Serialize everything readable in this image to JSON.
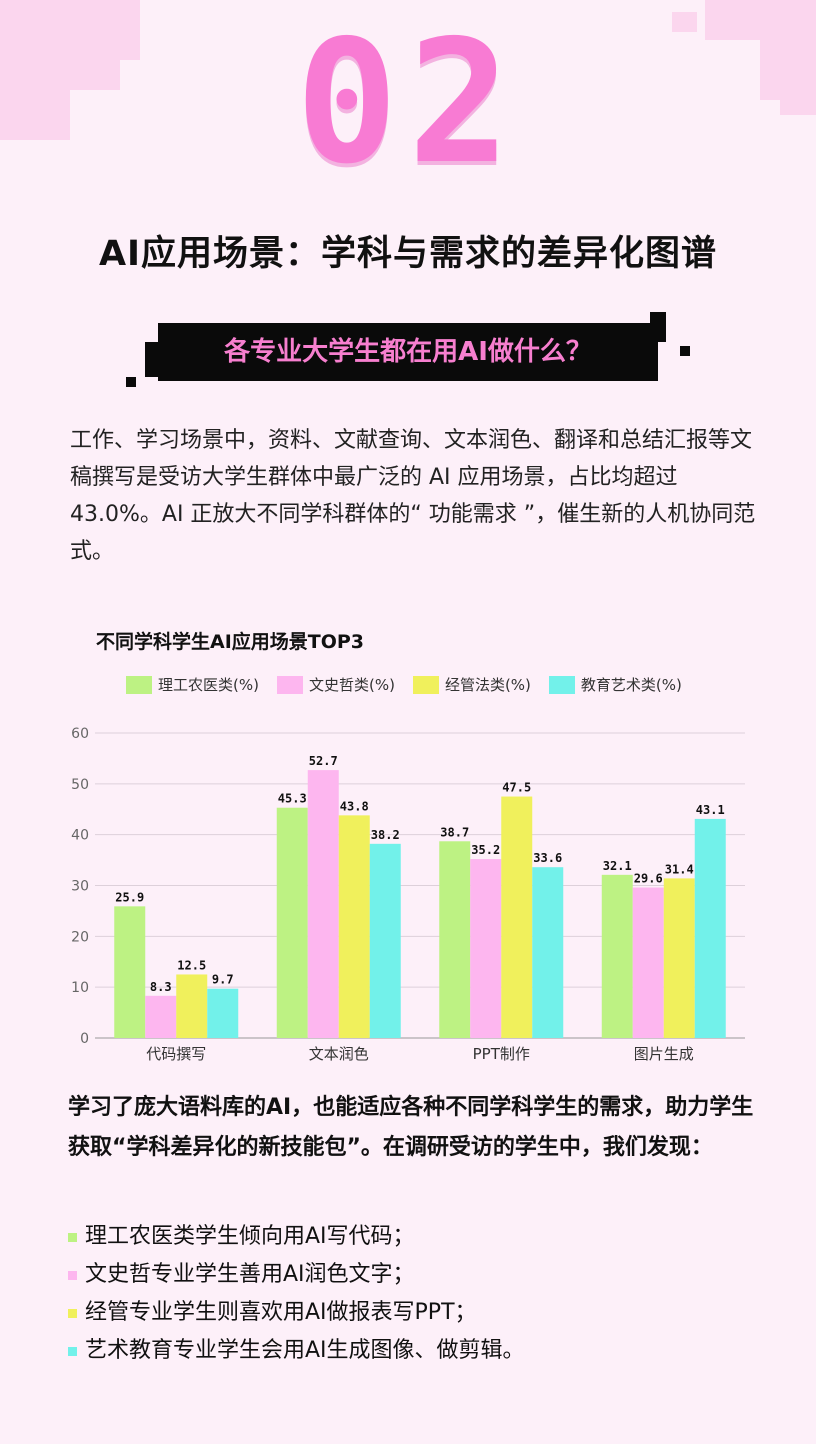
{
  "section_number": "02",
  "title": "AI应用场景：学科与需求的差异化图谱",
  "banner": "各专业大学生都在用AI做什么？",
  "intro": "工作、学习场景中，资料、文献查询、文本润色、翻译和总结汇报等文稿撰写是受访大学生群体中最广泛的 AI 应用场景，占比均超过 43.0%。AI 正放大不同学科群体的“ 功能需求 ”，催生新的人机协同范式。",
  "chart_data": {
    "type": "bar",
    "title": "不同学科学生AI应用场景TOP3",
    "categories": [
      "代码撰写",
      "文本润色",
      "PPT制作",
      "图片生成"
    ],
    "series": [
      {
        "name": "理工农医类(%)",
        "color": "#bdf283",
        "values": [
          25.9,
          45.3,
          38.7,
          32.1
        ]
      },
      {
        "name": "文史哲类(%)",
        "color": "#fdb6ef",
        "values": [
          8.3,
          52.7,
          35.2,
          29.6
        ]
      },
      {
        "name": "经管法类(%)",
        "color": "#f0f05c",
        "values": [
          12.5,
          43.8,
          47.5,
          31.4
        ]
      },
      {
        "name": "教育艺术类(%)",
        "color": "#72f1ea",
        "values": [
          9.7,
          38.2,
          33.6,
          43.1
        ]
      }
    ],
    "yticks": [
      0,
      10,
      20,
      30,
      40,
      50,
      60
    ],
    "ylim": [
      0,
      60
    ],
    "grid": true,
    "legend": "top"
  },
  "summary": "学习了庞大语料库的AI，也能适应各种不同学科学生的需求，助力学生获取“学科差异化的新技能包”。在调研受访的学生中，我们发现：",
  "bullets": [
    {
      "text": "理工农医类学生倾向用AI写代码；",
      "color": "#bdf283"
    },
    {
      "text": "文史哲专业学生善用AI润色文字；",
      "color": "#fdb6ef"
    },
    {
      "text": "经管专业学生则喜欢用AI做报表写PPT；",
      "color": "#f0f05c"
    },
    {
      "text": "艺术教育专业学生会用AI生成图像、做剪辑。",
      "color": "#72f1ea"
    }
  ]
}
